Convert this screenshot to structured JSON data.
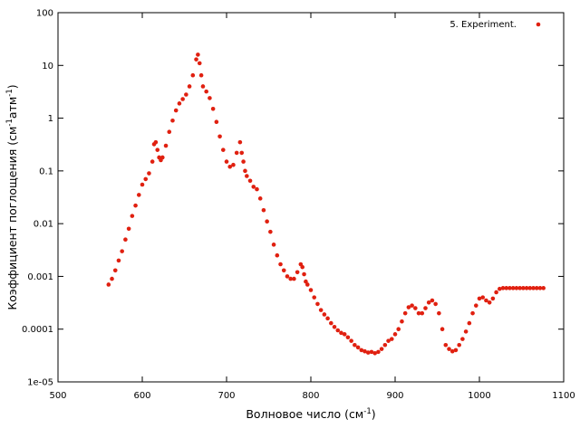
{
  "chart_data": {
    "type": "scatter",
    "title": "",
    "xlabel": {
      "main": "Волновое число (см",
      "sup": "-1",
      "tail": ")"
    },
    "ylabel": {
      "main": "Коэффициент поглощения (см",
      "sup1": "-1",
      "mid": "атм",
      "sup2": "-1",
      "tail": ")"
    },
    "xlim": [
      500,
      1100
    ],
    "ylim": [
      1e-05,
      100
    ],
    "yscale": "log",
    "grid": false,
    "legend_position": "top-right",
    "x_ticks": [
      500,
      600,
      700,
      800,
      900,
      1000,
      1100
    ],
    "x_tick_labels": [
      "500",
      "600",
      "700",
      "800",
      "900",
      "1000",
      "1100"
    ],
    "y_ticks": [
      1e-05,
      0.0001,
      0.001,
      0.01,
      0.1,
      1,
      10,
      100
    ],
    "y_tick_labels": [
      "1e-05",
      "0.0001",
      "0.001",
      "0.01",
      "0.1",
      "1",
      "10",
      "100"
    ],
    "series": [
      {
        "name": "5. Experiment.",
        "color": "#e02010",
        "x": [
          560,
          564,
          568,
          572,
          576,
          580,
          584,
          588,
          592,
          596,
          600,
          604,
          608,
          612,
          614,
          616,
          618,
          620,
          622,
          624,
          628,
          632,
          636,
          640,
          644,
          648,
          652,
          656,
          660,
          664,
          666,
          668,
          670,
          672,
          676,
          680,
          684,
          688,
          692,
          696,
          700,
          704,
          708,
          712,
          716,
          718,
          720,
          722,
          724,
          728,
          732,
          736,
          740,
          744,
          748,
          752,
          756,
          760,
          764,
          768,
          772,
          776,
          780,
          784,
          788,
          790,
          792,
          794,
          796,
          800,
          804,
          808,
          812,
          816,
          820,
          824,
          828,
          832,
          836,
          840,
          844,
          848,
          852,
          856,
          860,
          864,
          868,
          872,
          876,
          880,
          884,
          888,
          892,
          896,
          900,
          904,
          908,
          912,
          916,
          920,
          924,
          928,
          932,
          936,
          940,
          944,
          948,
          952,
          956,
          960,
          964,
          968,
          972,
          976,
          980,
          984,
          988,
          992,
          996,
          1000,
          1004,
          1008,
          1012,
          1016,
          1020,
          1024,
          1028,
          1032,
          1036,
          1040,
          1044,
          1048,
          1052,
          1056,
          1060,
          1064,
          1068,
          1072,
          1076
        ],
        "y": [
          0.0007,
          0.0009,
          0.0013,
          0.002,
          0.003,
          0.005,
          0.008,
          0.014,
          0.022,
          0.035,
          0.055,
          0.07,
          0.09,
          0.15,
          0.32,
          0.35,
          0.25,
          0.18,
          0.16,
          0.18,
          0.3,
          0.55,
          0.9,
          1.4,
          1.9,
          2.3,
          2.8,
          4.0,
          6.5,
          13.0,
          16.0,
          11.0,
          6.5,
          4.0,
          3.2,
          2.4,
          1.5,
          0.85,
          0.45,
          0.25,
          0.15,
          0.12,
          0.13,
          0.22,
          0.35,
          0.22,
          0.15,
          0.1,
          0.08,
          0.065,
          0.05,
          0.045,
          0.03,
          0.018,
          0.011,
          0.007,
          0.004,
          0.0025,
          0.0017,
          0.0013,
          0.001,
          0.0009,
          0.0009,
          0.0012,
          0.0017,
          0.0015,
          0.0011,
          0.0008,
          0.0007,
          0.00055,
          0.0004,
          0.0003,
          0.00023,
          0.00019,
          0.00016,
          0.00013,
          0.00011,
          9.5e-05,
          8.5e-05,
          8e-05,
          7e-05,
          6e-05,
          5e-05,
          4.5e-05,
          4e-05,
          3.8e-05,
          3.6e-05,
          3.7e-05,
          3.5e-05,
          3.7e-05,
          4.2e-05,
          5e-05,
          6e-05,
          6.5e-05,
          8e-05,
          0.0001,
          0.00014,
          0.0002,
          0.00026,
          0.00028,
          0.00025,
          0.0002,
          0.0002,
          0.00025,
          0.00032,
          0.00035,
          0.0003,
          0.0002,
          0.0001,
          5e-05,
          4.2e-05,
          3.8e-05,
          4e-05,
          5e-05,
          6.5e-05,
          9e-05,
          0.00013,
          0.0002,
          0.00028,
          0.00038,
          0.0004,
          0.00035,
          0.00032,
          0.00038,
          0.0005,
          0.00058,
          0.0006,
          0.0006,
          0.0006,
          0.0006,
          0.0006,
          0.0006,
          0.0006,
          0.0006,
          0.0006,
          0.0006,
          0.0006,
          0.0006,
          0.0006
        ]
      }
    ]
  }
}
